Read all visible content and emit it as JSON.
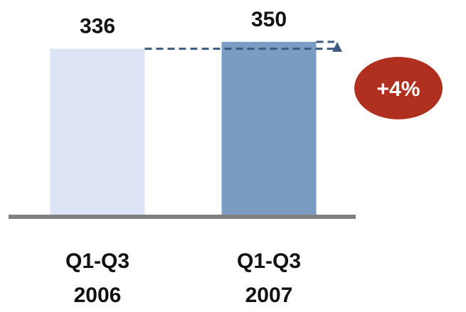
{
  "chart_data": {
    "type": "bar",
    "categories": [
      [
        "Q1-Q3",
        "2006"
      ],
      [
        "Q1-Q3",
        "2007"
      ]
    ],
    "values": [
      336,
      350
    ],
    "value_labels": [
      "336",
      "350"
    ],
    "ylim": [
      0,
      370
    ],
    "grid": false,
    "legend": "none",
    "change_label": "+4%",
    "colors": {
      "bars": [
        "#dce4f5",
        "#7a9cc2"
      ],
      "baseline": "#808080",
      "connector": "#3d5a80",
      "badge": "#b03020",
      "badge_text": "#ffffff",
      "text": "#111111"
    }
  }
}
